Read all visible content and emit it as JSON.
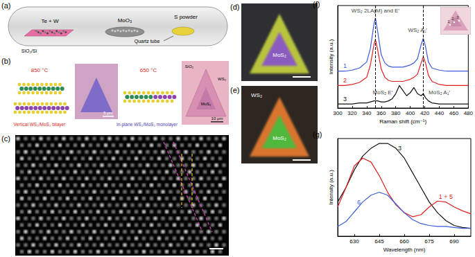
{
  "panels": {
    "a": {
      "label": "(a)",
      "source": "Te + W",
      "substrate": "SiO₂/Si",
      "precursor": "MoO₃",
      "sulfur": "S powder",
      "tube": "Quartz tube"
    },
    "b": {
      "label": "(b)",
      "left": {
        "temperature": "850 °C",
        "caption": "Vertical WS₂/MoS₂ bilayer",
        "scale_bar": "5 μm"
      },
      "right": {
        "temperature": "650 °C",
        "caption": "In-plane WS₂/MoS₂ monolayer",
        "scale_bar": "10 μm",
        "outer": "WS₂",
        "inner": "MoS₂",
        "substrate": "SiO₂"
      }
    },
    "c": {
      "label": "(c)"
    },
    "d": {
      "label": "(d)",
      "inner": "MoS₂"
    },
    "e": {
      "label": "(e)",
      "outer": "WS₂",
      "inner": "MoS₂"
    }
  },
  "chart_data": [
    {
      "label": "(f)",
      "type": "line",
      "xlabel": "Raman shift (cm⁻¹)",
      "ylabel": "Intensity (a.u.)",
      "x": [
        300,
        310,
        320,
        330,
        340,
        345,
        350,
        352,
        355,
        360,
        365,
        370,
        375,
        380,
        385,
        390,
        395,
        400,
        405,
        410,
        415,
        418,
        421,
        425,
        430,
        440,
        450,
        460,
        470,
        480
      ],
      "xlim": [
        300,
        480
      ],
      "xticks": [
        300,
        320,
        340,
        360,
        380,
        400,
        420,
        440,
        460,
        480
      ],
      "ylim": [
        0,
        1
      ],
      "tick_labels": "x",
      "series": [
        {
          "name": "1",
          "color": "#3b5bdb",
          "values": [
            0.36,
            0.36,
            0.37,
            0.39,
            0.45,
            0.58,
            0.82,
            0.88,
            0.75,
            0.52,
            0.44,
            0.41,
            0.4,
            0.4,
            0.4,
            0.4,
            0.41,
            0.42,
            0.44,
            0.48,
            0.62,
            0.68,
            0.6,
            0.45,
            0.39,
            0.37,
            0.36,
            0.36,
            0.36,
            0.36
          ]
        },
        {
          "name": "2",
          "color": "#e02020",
          "values": [
            0.22,
            0.22,
            0.23,
            0.25,
            0.3,
            0.42,
            0.62,
            0.67,
            0.57,
            0.38,
            0.3,
            0.27,
            0.26,
            0.26,
            0.26,
            0.26,
            0.27,
            0.28,
            0.3,
            0.33,
            0.44,
            0.5,
            0.44,
            0.32,
            0.26,
            0.23,
            0.22,
            0.22,
            0.22,
            0.22
          ]
        },
        {
          "name": "3",
          "color": "#111111",
          "values": [
            0.04,
            0.04,
            0.04,
            0.05,
            0.05,
            0.06,
            0.07,
            0.07,
            0.07,
            0.06,
            0.06,
            0.07,
            0.09,
            0.14,
            0.22,
            0.17,
            0.12,
            0.15,
            0.2,
            0.14,
            0.12,
            0.14,
            0.1,
            0.07,
            0.05,
            0.04,
            0.04,
            0.04,
            0.04,
            0.04
          ]
        }
      ],
      "annotations": [
        {
          "text": "WS₂ 2LA(M) and E′",
          "x": 352,
          "y": 0.95
        },
        {
          "text": "WS₂ A₁′",
          "x": 410,
          "y": 0.76
        },
        {
          "text": "MoS₂ E′",
          "x": 362,
          "y": 0.15
        },
        {
          "text": "MoS₂ A₁′",
          "x": 440,
          "y": 0.15
        }
      ],
      "vlines": [
        352,
        418
      ],
      "inset": {
        "labels": [
          "1",
          "2",
          "3"
        ]
      }
    },
    {
      "label": "(g)",
      "type": "line",
      "xlabel": "Wavelength (nm)",
      "ylabel": "Intensity (a.u.)",
      "x": [
        620,
        625,
        630,
        635,
        640,
        645,
        650,
        655,
        660,
        665,
        670,
        675,
        680,
        685,
        690,
        695,
        700
      ],
      "xlim": [
        620,
        700
      ],
      "xticks": [
        630,
        645,
        660,
        675,
        690
      ],
      "ylim": [
        0,
        1
      ],
      "tick_labels": "x",
      "series": [
        {
          "name": "3",
          "color": "#111111",
          "values": [
            0.35,
            0.5,
            0.68,
            0.82,
            0.9,
            0.95,
            0.95,
            0.9,
            0.8,
            0.65,
            0.5,
            0.35,
            0.24,
            0.16,
            0.11,
            0.09,
            0.08
          ]
        },
        {
          "name": "1 + 5",
          "color": "#e02020",
          "values": [
            0.3,
            0.5,
            0.72,
            0.8,
            0.76,
            0.62,
            0.45,
            0.32,
            0.24,
            0.2,
            0.22,
            0.3,
            0.36,
            0.35,
            0.3,
            0.26,
            0.23
          ]
        },
        {
          "name": "6",
          "color": "#3b5bdb",
          "values": [
            0.1,
            0.15,
            0.25,
            0.35,
            0.42,
            0.45,
            0.42,
            0.33,
            0.24,
            0.17,
            0.13,
            0.11,
            0.1,
            0.1,
            0.09,
            0.08,
            0.08
          ]
        }
      ]
    }
  ]
}
